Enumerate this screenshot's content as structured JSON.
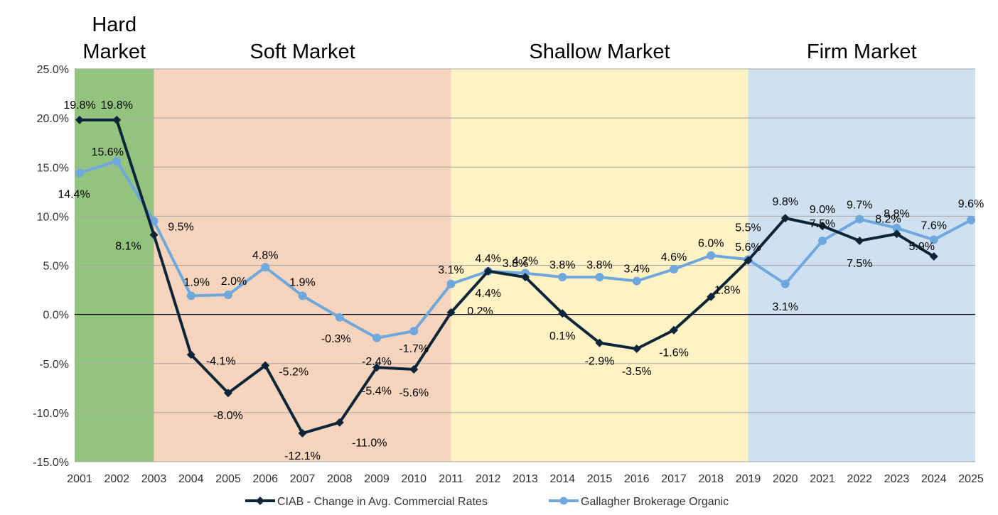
{
  "chart_data": {
    "type": "line",
    "x": [
      "2001",
      "2002",
      "2003",
      "2004",
      "2005",
      "2006",
      "2007",
      "2008",
      "2009",
      "2010",
      "2011",
      "2012",
      "2013",
      "2014",
      "2015",
      "2016",
      "2017",
      "2018",
      "2019",
      "2020",
      "2021",
      "2022",
      "2023",
      "2024",
      "2025"
    ],
    "ylim": [
      -15,
      25
    ],
    "yticks": [
      -15,
      -10,
      -5,
      0,
      5,
      10,
      15,
      20,
      25
    ],
    "ytick_labels": [
      "-15.0%",
      "-10.0%",
      "-5.0%",
      "0.0%",
      "5.0%",
      "10.0%",
      "15.0%",
      "20.0%",
      "25.0%"
    ],
    "grid": true,
    "legend_position": "bottom",
    "regions": [
      {
        "label_lines": [
          "Hard",
          "Market"
        ],
        "from": "2001",
        "to": "2003",
        "color": "#93c47d"
      },
      {
        "label_lines": [
          "Soft Market"
        ],
        "from": "2003",
        "to": "2011",
        "color": "#f6d4bd"
      },
      {
        "label_lines": [
          "Shallow Market"
        ],
        "from": "2011",
        "to": "2019",
        "color": "#fff2c4"
      },
      {
        "label_lines": [
          "Firm Market"
        ],
        "from": "2019",
        "to": "2025",
        "color": "#cfe0f1"
      }
    ],
    "series": [
      {
        "name": "CIAB - Change in Avg. Commercial Rates",
        "color": "#0d2538",
        "marker": "diamond",
        "values": [
          19.8,
          19.8,
          8.1,
          -4.1,
          -8.0,
          -5.2,
          -12.1,
          -11.0,
          -5.4,
          -5.6,
          0.2,
          4.4,
          3.8,
          0.1,
          -2.9,
          -3.5,
          -1.6,
          1.8,
          5.5,
          9.8,
          9.0,
          7.5,
          8.2,
          5.9,
          null
        ],
        "labels": [
          "19.8%",
          "19.8%",
          "8.1%",
          "-4.1%",
          "-8.0%",
          "-5.2%",
          "-12.1%",
          "-11.0%",
          "-5.4%",
          "-5.6%",
          "0.2%",
          "4.4%",
          "3.8%",
          "0.1%",
          "-2.9%",
          "-3.5%",
          "-1.6%",
          "1.8%",
          "5.5%",
          "9.8%",
          "9.0%",
          "7.5%",
          "8.2%",
          "5.9%",
          ""
        ]
      },
      {
        "name": "Gallagher Brokerage Organic",
        "color": "#6fa8dc",
        "marker": "circle",
        "values": [
          14.4,
          15.6,
          9.5,
          1.9,
          2.0,
          4.8,
          1.9,
          -0.3,
          -2.4,
          -1.7,
          3.1,
          4.4,
          4.2,
          3.8,
          3.8,
          3.4,
          4.6,
          6.0,
          5.6,
          3.1,
          7.5,
          9.7,
          8.8,
          7.6,
          9.6
        ],
        "labels": [
          "14.4%",
          "15.6%",
          "9.5%",
          "1.9%",
          "2.0%",
          "4.8%",
          "1.9%",
          "-0.3%",
          "-2.4%",
          "-1.7%",
          "3.1%",
          "4.4%",
          "4.2%",
          "3.8%",
          "3.8%",
          "3.4%",
          "4.6%",
          "6.0%",
          "5.6%",
          "3.1%",
          "7.5%",
          "9.7%",
          "8.8%",
          "7.6%",
          "9.6%"
        ]
      }
    ]
  }
}
